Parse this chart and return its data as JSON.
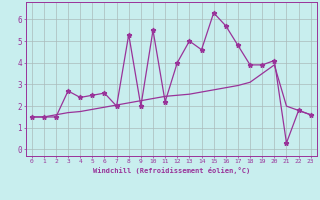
{
  "title": "",
  "xlabel": "Windchill (Refroidissement éolien,°C)",
  "ylabel": "",
  "xlim": [
    -0.5,
    23.5
  ],
  "ylim": [
    -0.3,
    6.8
  ],
  "xticks": [
    0,
    1,
    2,
    3,
    4,
    5,
    6,
    7,
    8,
    9,
    10,
    11,
    12,
    13,
    14,
    15,
    16,
    17,
    18,
    19,
    20,
    21,
    22,
    23
  ],
  "yticks": [
    0,
    1,
    2,
    3,
    4,
    5,
    6
  ],
  "bg_color": "#c8eeee",
  "line_color": "#993399",
  "grid_color": "#aabbbb",
  "series1_x": [
    0,
    1,
    2,
    3,
    4,
    5,
    6,
    7,
    8,
    9,
    10,
    11,
    12,
    13,
    14,
    15,
    16,
    17,
    18,
    19,
    20,
    21,
    22,
    23
  ],
  "series1_y": [
    1.5,
    1.5,
    1.5,
    2.7,
    2.4,
    2.5,
    2.6,
    2.0,
    5.3,
    2.0,
    5.5,
    2.2,
    4.0,
    5.0,
    4.6,
    6.3,
    5.7,
    4.8,
    3.9,
    3.9,
    4.1,
    0.3,
    1.8,
    1.6
  ],
  "series2_x": [
    0,
    1,
    2,
    3,
    4,
    5,
    6,
    7,
    8,
    9,
    10,
    11,
    12,
    13,
    14,
    15,
    16,
    17,
    18,
    19,
    20,
    21,
    22,
    23
  ],
  "series2_y": [
    1.5,
    1.5,
    1.6,
    1.7,
    1.75,
    1.85,
    1.95,
    2.05,
    2.15,
    2.25,
    2.35,
    2.45,
    2.5,
    2.55,
    2.65,
    2.75,
    2.85,
    2.95,
    3.1,
    3.5,
    3.9,
    2.0,
    1.8,
    1.6
  ]
}
